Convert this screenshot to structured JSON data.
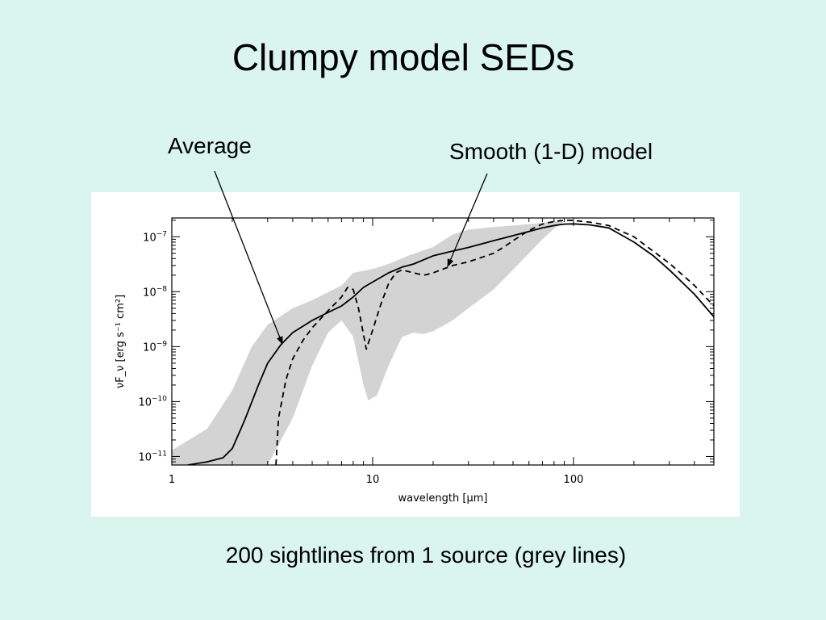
{
  "slide": {
    "title": "Clumpy model SEDs",
    "caption": "200 sightlines from 1 source (grey lines)",
    "callouts": [
      {
        "label": "Average",
        "series": "Average"
      },
      {
        "label": "Smooth (1-D) model",
        "series": "Smooth (1-D) model"
      }
    ]
  },
  "colors": {
    "background": "#daf4ee",
    "panel": "#ffffff",
    "grey_band": "#d3d3d3",
    "lines": "#000000"
  },
  "chart_data": {
    "type": "line",
    "title": "",
    "xlabel": "wavelength [µm]",
    "ylabel": "νF_ν [erg s⁻¹ cm²]",
    "xscale": "log",
    "yscale": "log",
    "xlim": [
      1,
      500
    ],
    "ylim": [
      7e-12,
      2.2e-07
    ],
    "x_ticks": [
      {
        "value": 1,
        "label": "1"
      },
      {
        "value": 10,
        "label": "10"
      },
      {
        "value": 100,
        "label": "100"
      }
    ],
    "y_ticks": [
      {
        "value": 1e-11,
        "base": "10",
        "exp": "−11"
      },
      {
        "value": 1e-10,
        "base": "10",
        "exp": "−10"
      },
      {
        "value": 1e-09,
        "base": "10",
        "exp": "−9"
      },
      {
        "value": 1e-08,
        "base": "10",
        "exp": "−8"
      },
      {
        "value": 1e-07,
        "base": "10",
        "exp": "−7"
      }
    ],
    "grid": false,
    "legend": "none",
    "band": {
      "description": "200 sightlines (grey lines)",
      "upper": [
        [
          1.0,
          1.3e-11
        ],
        [
          1.5,
          3.2e-11
        ],
        [
          2.0,
          1.6e-10
        ],
        [
          2.5,
          1e-09
        ],
        [
          3,
          2.5e-09
        ],
        [
          4,
          5e-09
        ],
        [
          5,
          7e-09
        ],
        [
          7,
          1.3e-08
        ],
        [
          8,
          2.2e-08
        ],
        [
          10,
          2.6e-08
        ],
        [
          12,
          3.2e-08
        ],
        [
          15,
          4.5e-08
        ],
        [
          20,
          6.5e-08
        ],
        [
          25,
          1.1e-07
        ],
        [
          30,
          1.35e-07
        ],
        [
          40,
          1.5e-07
        ],
        [
          50,
          1.6e-07
        ],
        [
          60,
          1.7e-07
        ],
        [
          70,
          1.8e-07
        ],
        [
          80,
          1.9e-07
        ],
        [
          90,
          1.95e-07
        ]
      ],
      "lower": [
        [
          1.0,
          7e-12
        ],
        [
          2.5,
          7e-12
        ],
        [
          3,
          7e-12
        ],
        [
          4,
          5e-11
        ],
        [
          5,
          4.5e-10
        ],
        [
          6,
          1.8e-09
        ],
        [
          7,
          3e-09
        ],
        [
          8,
          1.5e-09
        ],
        [
          9,
          2e-10
        ],
        [
          9.5,
          1.05e-10
        ],
        [
          10.5,
          1.3e-10
        ],
        [
          12,
          4.5e-10
        ],
        [
          14,
          1.5e-09
        ],
        [
          16,
          1.8e-09
        ],
        [
          18,
          1.7e-09
        ],
        [
          20,
          1.9e-09
        ],
        [
          25,
          3e-09
        ],
        [
          30,
          5e-09
        ],
        [
          40,
          1.1e-08
        ],
        [
          50,
          2.5e-08
        ],
        [
          60,
          5e-08
        ],
        [
          70,
          9e-08
        ],
        [
          80,
          1.4e-07
        ],
        [
          90,
          1.9e-07
        ]
      ]
    },
    "series": [
      {
        "name": "Average",
        "style": "solid",
        "points": [
          [
            1.2,
            7e-12
          ],
          [
            1.5,
            8e-12
          ],
          [
            1.8,
            9.5e-12
          ],
          [
            2.0,
            1.4e-11
          ],
          [
            2.3,
            4.5e-11
          ],
          [
            2.7,
            2e-10
          ],
          [
            3.0,
            5e-10
          ],
          [
            3.5,
            1.1e-09
          ],
          [
            4,
            1.8e-09
          ],
          [
            5,
            3e-09
          ],
          [
            6,
            4.2e-09
          ],
          [
            7,
            5.5e-09
          ],
          [
            8,
            8e-09
          ],
          [
            9,
            1.2e-08
          ],
          [
            10,
            1.5e-08
          ],
          [
            12,
            2.2e-08
          ],
          [
            14,
            2.8e-08
          ],
          [
            16,
            3.2e-08
          ],
          [
            20,
            4.5e-08
          ],
          [
            25,
            5.5e-08
          ],
          [
            30,
            6.4e-08
          ],
          [
            40,
            8.5e-08
          ],
          [
            50,
            1.05e-07
          ],
          [
            60,
            1.25e-07
          ],
          [
            70,
            1.45e-07
          ],
          [
            80,
            1.6e-07
          ],
          [
            90,
            1.7e-07
          ],
          [
            100,
            1.72e-07
          ],
          [
            120,
            1.65e-07
          ],
          [
            150,
            1.45e-07
          ],
          [
            200,
            8e-08
          ],
          [
            250,
            4.5e-08
          ],
          [
            300,
            2.5e-08
          ],
          [
            400,
            9e-09
          ],
          [
            500,
            3.5e-09
          ]
        ]
      },
      {
        "name": "Smooth (1-D) model",
        "style": "dashed",
        "points": [
          [
            3.3,
            7e-12
          ],
          [
            3.4,
            5e-11
          ],
          [
            3.7,
            2.5e-10
          ],
          [
            4,
            6e-10
          ],
          [
            4.5,
            1.3e-09
          ],
          [
            5,
            2.2e-09
          ],
          [
            6,
            4.5e-09
          ],
          [
            7,
            8e-09
          ],
          [
            7.5,
            1.2e-08
          ],
          [
            8,
            1.1e-08
          ],
          [
            8.5,
            5e-09
          ],
          [
            9.3,
            9e-10
          ],
          [
            10,
            2e-09
          ],
          [
            11,
            6e-09
          ],
          [
            12,
            1.4e-08
          ],
          [
            13,
            2.2e-08
          ],
          [
            14,
            2.5e-08
          ],
          [
            16,
            2.2e-08
          ],
          [
            18,
            2e-08
          ],
          [
            20,
            2.2e-08
          ],
          [
            25,
            3e-08
          ],
          [
            30,
            3.5e-08
          ],
          [
            40,
            5e-08
          ],
          [
            45,
            6.5e-08
          ],
          [
            50,
            8.5e-08
          ],
          [
            60,
            1.3e-07
          ],
          [
            70,
            1.7e-07
          ],
          [
            80,
            1.9e-07
          ],
          [
            90,
            2e-07
          ],
          [
            100,
            1.98e-07
          ],
          [
            120,
            1.85e-07
          ],
          [
            150,
            1.6e-07
          ],
          [
            200,
            1e-07
          ],
          [
            300,
            3.3e-08
          ],
          [
            400,
            1.3e-08
          ],
          [
            500,
            5.5e-09
          ]
        ]
      }
    ]
  }
}
